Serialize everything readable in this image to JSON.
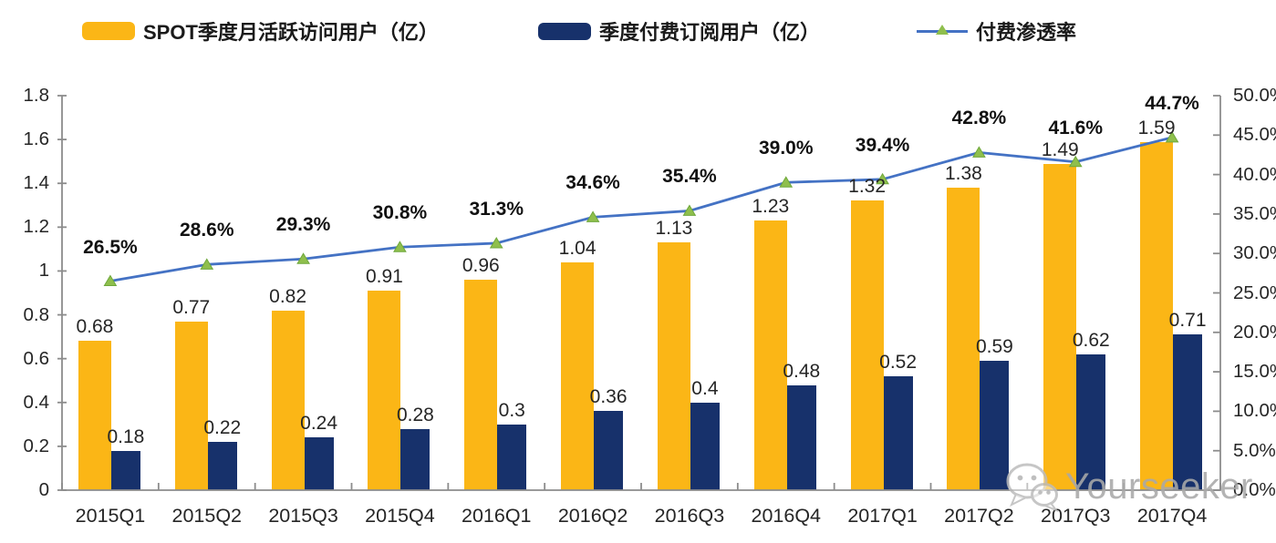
{
  "legend": {
    "items": [
      {
        "label": "SPOT季度月活跃访问用户（亿）",
        "swatch": "bar",
        "color": "#FBB616"
      },
      {
        "label": "季度付费订阅用户（亿）",
        "swatch": "bar",
        "color": "#17316B"
      },
      {
        "label": "付费渗透率",
        "swatch": "line-marker",
        "line_color": "#4472C4",
        "marker_color": "#8FBF4D"
      }
    ]
  },
  "chart_data": {
    "type": "bar+line",
    "title": "",
    "categories": [
      "2015Q1",
      "2015Q2",
      "2015Q3",
      "2015Q4",
      "2016Q1",
      "2016Q2",
      "2016Q3",
      "2016Q4",
      "2017Q1",
      "2017Q2",
      "2017Q3",
      "2017Q4"
    ],
    "series": [
      {
        "name": "SPOT季度月活跃访问用户（亿）",
        "kind": "bar",
        "axis": "left",
        "color": "#FBB616",
        "values": [
          0.68,
          0.77,
          0.82,
          0.91,
          0.96,
          1.04,
          1.13,
          1.23,
          1.32,
          1.38,
          1.49,
          1.59
        ],
        "labels": [
          "0.68",
          "0.77",
          "0.82",
          "0.91",
          "0.96",
          "1.04",
          "1.13",
          "1.23",
          "1.32",
          "1.38",
          "1.49",
          "1.59"
        ]
      },
      {
        "name": "季度付费订阅用户（亿）",
        "kind": "bar",
        "axis": "left",
        "color": "#17316B",
        "values": [
          0.18,
          0.22,
          0.24,
          0.28,
          0.3,
          0.36,
          0.4,
          0.48,
          0.52,
          0.59,
          0.62,
          0.71
        ],
        "labels": [
          "0.18",
          "0.22",
          "0.24",
          "0.28",
          "0.3",
          "0.36",
          "0.4",
          "0.48",
          "0.52",
          "0.59",
          "0.62",
          "0.71"
        ]
      },
      {
        "name": "付费渗透率",
        "kind": "line",
        "axis": "right",
        "color": "#4472C4",
        "marker": "triangle",
        "marker_color": "#8FBF4D",
        "marker_edge_color": "#6FA83C",
        "values": [
          26.5,
          28.6,
          29.3,
          30.8,
          31.3,
          34.6,
          35.4,
          39.0,
          39.4,
          42.8,
          41.6,
          44.7
        ],
        "labels": [
          "26.5%",
          "28.6%",
          "29.3%",
          "30.8%",
          "31.3%",
          "34.6%",
          "35.4%",
          "39.0%",
          "39.4%",
          "42.8%",
          "41.6%",
          "44.7%"
        ]
      }
    ],
    "left_axis": {
      "min": 0,
      "max": 1.8,
      "tick_labels": [
        "0",
        "0.2",
        "0.4",
        "0.6",
        "0.8",
        "1",
        "1.2",
        "1.4",
        "1.6",
        "1.8"
      ]
    },
    "right_axis": {
      "min": 0,
      "max": 50,
      "tick_labels": [
        "0.0%",
        "5.0%",
        "10.0%",
        "15.0%",
        "20.0%",
        "25.0%",
        "30.0%",
        "35.0%",
        "40.0%",
        "45.0%",
        "50.0%"
      ]
    },
    "legend_position": "top",
    "grid": false,
    "axis_color": "#8C8C8C"
  },
  "watermark": {
    "text": "Yourseeker",
    "icon": "wechat-icon"
  }
}
